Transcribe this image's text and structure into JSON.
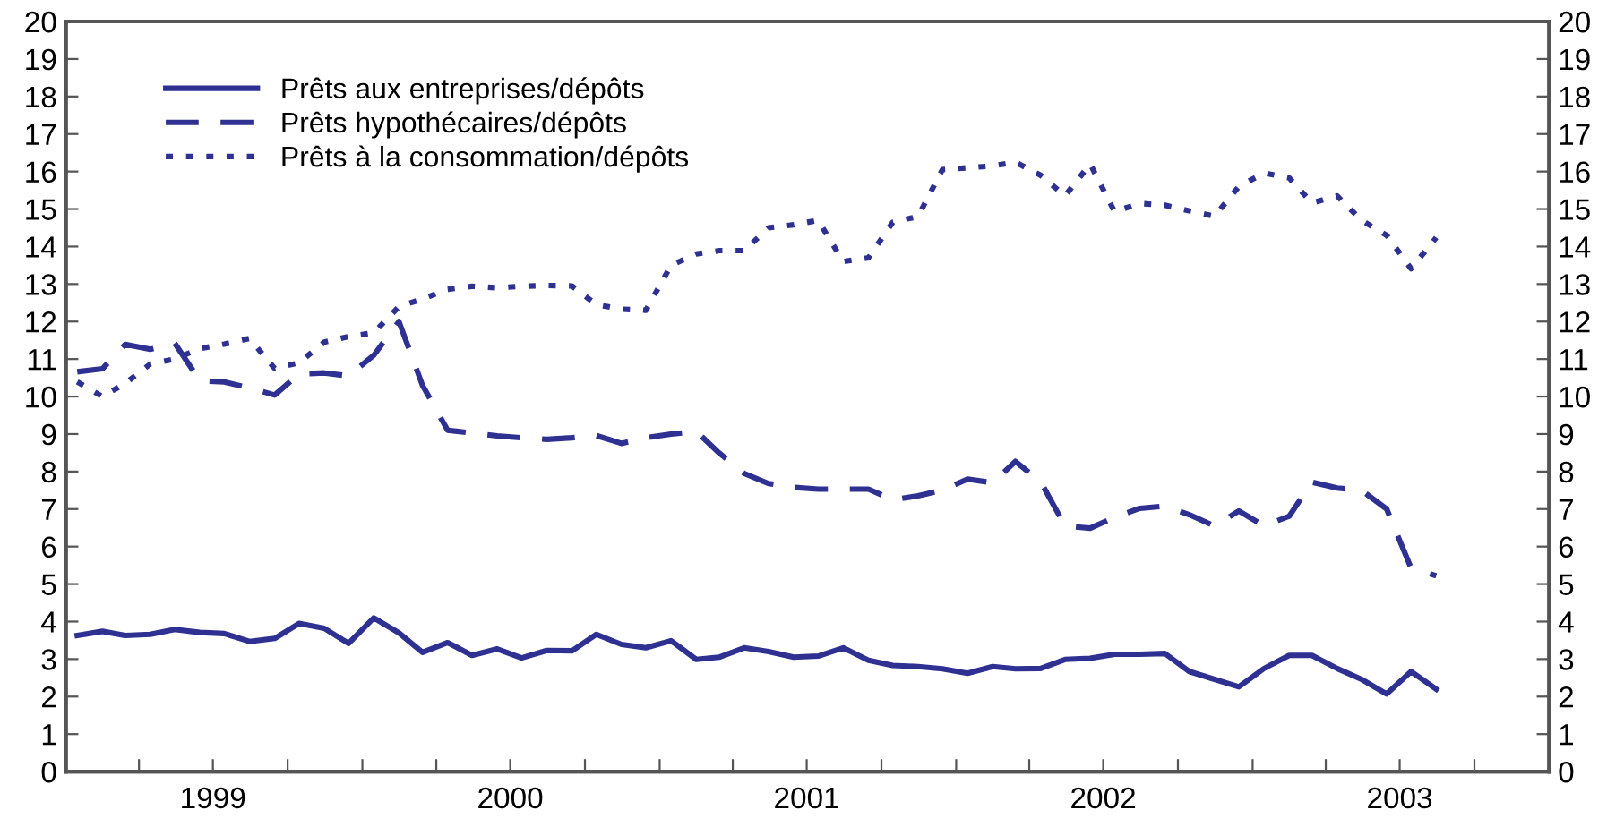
{
  "chart_data": {
    "type": "line",
    "x": [
      "1999-01-15",
      "1999-02-15",
      "1999-03-15",
      "1999-04-15",
      "1999-05-15",
      "1999-06-15",
      "1999-07-15",
      "1999-08-15",
      "1999-09-15",
      "1999-10-15",
      "1999-11-15",
      "1999-12-15",
      "2000-01-15",
      "2000-02-15",
      "2000-03-15",
      "2000-04-15",
      "2000-05-15",
      "2000-06-15",
      "2000-07-15",
      "2000-08-15",
      "2000-09-15",
      "2000-10-15",
      "2000-11-15",
      "2000-12-15",
      "2001-01-15",
      "2001-02-15",
      "2001-03-15",
      "2001-04-15",
      "2001-05-15",
      "2001-06-15",
      "2001-07-15",
      "2001-08-15",
      "2001-09-15",
      "2001-10-15",
      "2001-11-15",
      "2001-12-15",
      "2002-01-15",
      "2002-02-15",
      "2002-03-15",
      "2002-04-15",
      "2002-05-15",
      "2002-06-15",
      "2002-07-15",
      "2002-08-15",
      "2002-09-15",
      "2002-10-15",
      "2002-11-15",
      "2002-12-15",
      "2003-01-15",
      "2003-02-15",
      "2003-03-15",
      "2003-04-15",
      "2003-05-15",
      "2003-06-15",
      "2003-07-15",
      "2003-08-15"
    ],
    "series": [
      {
        "name": "Prêts aux entreprises/dépôts",
        "color": "#2e3192",
        "line_style": "solid",
        "values": [
          3.63,
          3.74,
          3.63,
          3.66,
          3.79,
          3.71,
          3.68,
          3.47,
          3.55,
          3.95,
          3.82,
          3.42,
          4.1,
          3.7,
          3.18,
          3.44,
          3.1,
          3.27,
          3.03,
          3.23,
          3.22,
          3.66,
          3.39,
          3.3,
          3.49,
          2.99,
          3.05,
          3.3,
          3.2,
          3.05,
          3.08,
          3.3,
          2.97,
          2.83,
          2.8,
          2.74,
          2.62,
          2.8,
          2.74,
          2.75,
          2.99,
          3.02,
          3.13,
          3.13,
          3.15,
          2.67,
          2.46,
          2.26,
          2.75,
          3.1,
          3.1,
          2.75,
          2.46,
          2.07,
          2.67,
          2.2
        ]
      },
      {
        "name": "Prêts hypothécaires/dépôts",
        "color": "#2e3192",
        "line_style": "dashed",
        "values": [
          10.66,
          10.74,
          11.39,
          11.26,
          11.42,
          10.42,
          10.39,
          10.23,
          10.04,
          10.6,
          10.63,
          10.55,
          11.1,
          12.0,
          10.3,
          9.1,
          9.03,
          8.95,
          8.9,
          8.86,
          8.9,
          8.96,
          8.75,
          8.9,
          9.0,
          9.07,
          8.5,
          7.95,
          7.68,
          7.58,
          7.53,
          7.53,
          7.53,
          7.25,
          7.35,
          7.5,
          7.8,
          7.7,
          8.27,
          7.73,
          6.55,
          6.49,
          6.78,
          7.02,
          7.08,
          6.85,
          6.55,
          6.95,
          6.55,
          6.81,
          7.72,
          7.56,
          7.5,
          7.0,
          5.43,
          5.22
        ]
      },
      {
        "name": "Prêts à la consommation/dépôts",
        "color": "#2e3192",
        "line_style": "dotted",
        "values": [
          10.39,
          10.0,
          10.35,
          10.87,
          11.0,
          11.28,
          11.4,
          11.55,
          10.75,
          10.9,
          11.45,
          11.6,
          11.7,
          12.4,
          12.6,
          12.86,
          12.94,
          12.9,
          12.94,
          12.96,
          12.95,
          12.45,
          12.33,
          12.3,
          13.5,
          13.8,
          13.89,
          13.89,
          14.5,
          14.58,
          14.7,
          13.6,
          13.7,
          14.65,
          14.8,
          16.05,
          16.1,
          16.15,
          16.25,
          15.9,
          15.35,
          16.2,
          14.93,
          15.15,
          15.1,
          14.95,
          14.81,
          15.6,
          15.96,
          15.83,
          15.16,
          15.35,
          14.7,
          14.3,
          13.41,
          14.24
        ]
      }
    ],
    "xlim": [
      "1999-01-01",
      "2004-01-01"
    ],
    "xticks": [
      {
        "value": "1999-01-01",
        "label": null
      },
      {
        "value": "1999-04-01",
        "label": null
      },
      {
        "value": "1999-07-01",
        "label": "1999"
      },
      {
        "value": "1999-10-01",
        "label": null
      },
      {
        "value": "2000-01-01",
        "label": null
      },
      {
        "value": "2000-04-01",
        "label": null
      },
      {
        "value": "2000-07-01",
        "label": "2000"
      },
      {
        "value": "2000-10-01",
        "label": null
      },
      {
        "value": "2001-01-01",
        "label": null
      },
      {
        "value": "2001-04-01",
        "label": null
      },
      {
        "value": "2001-07-01",
        "label": "2001"
      },
      {
        "value": "2001-10-01",
        "label": null
      },
      {
        "value": "2002-01-01",
        "label": null
      },
      {
        "value": "2002-04-01",
        "label": null
      },
      {
        "value": "2002-07-01",
        "label": "2002"
      },
      {
        "value": "2002-10-01",
        "label": null
      },
      {
        "value": "2003-01-01",
        "label": null
      },
      {
        "value": "2003-04-01",
        "label": null
      },
      {
        "value": "2003-07-01",
        "label": "2003"
      },
      {
        "value": "2003-10-01",
        "label": null
      },
      {
        "value": "2004-01-01",
        "label": null
      }
    ],
    "ylim": [
      0,
      20
    ],
    "yticks": [
      0,
      1,
      2,
      3,
      4,
      5,
      6,
      7,
      8,
      9,
      10,
      11,
      12,
      13,
      14,
      15,
      16,
      17,
      18,
      19,
      20
    ],
    "y2lim": [
      0,
      20
    ],
    "y2ticks": [
      0,
      1,
      2,
      3,
      4,
      5,
      6,
      7,
      8,
      9,
      10,
      11,
      12,
      13,
      14,
      15,
      16,
      17,
      18,
      19,
      20
    ],
    "legend": "top left",
    "grid": false
  }
}
